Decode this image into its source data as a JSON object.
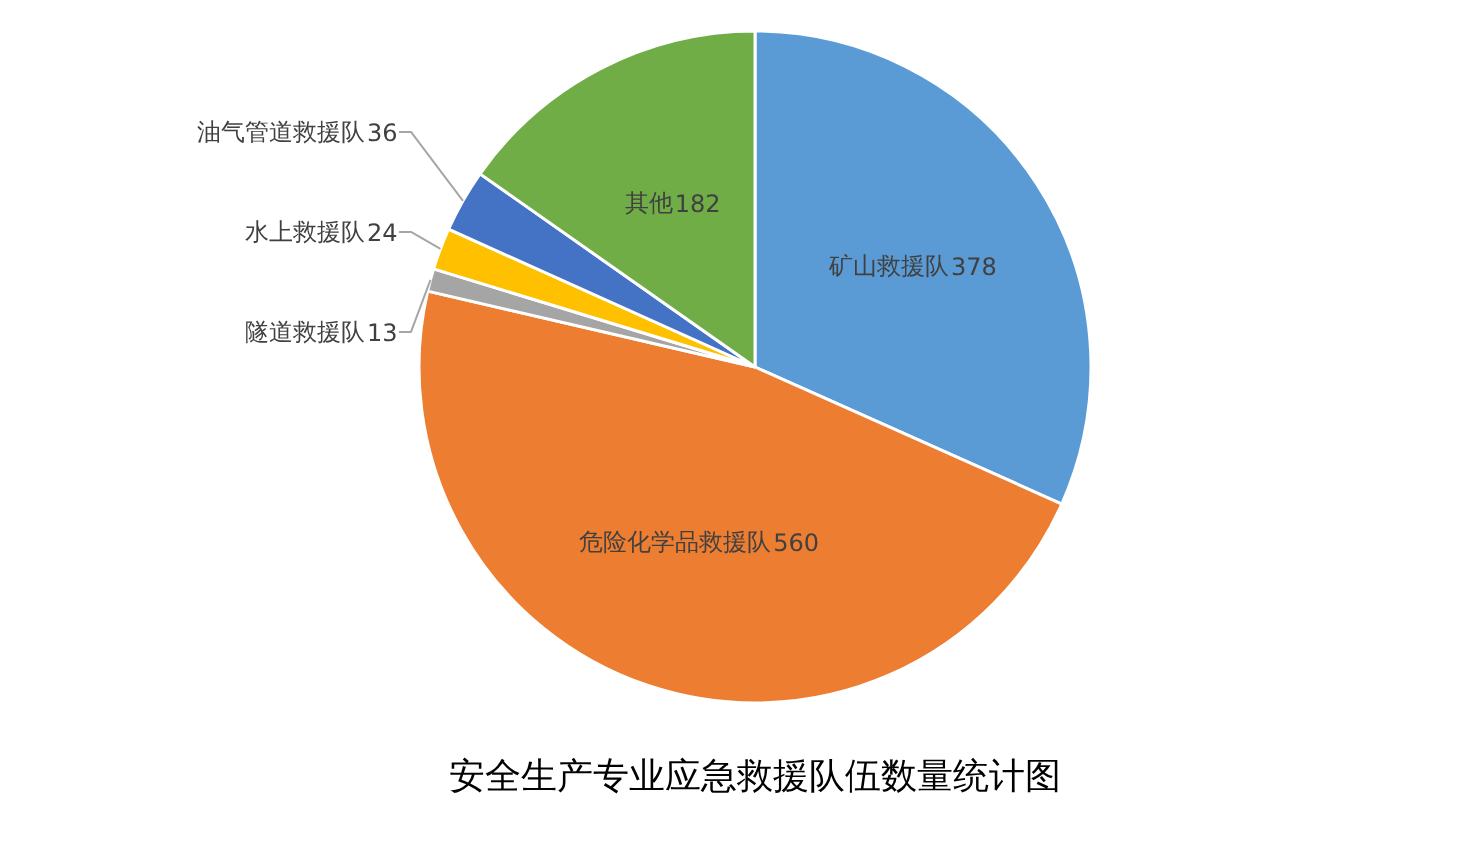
{
  "chart_data": {
    "type": "pie",
    "title": "安全生产专业应急救援队伍数量统计图",
    "categories": [
      "矿山救援队",
      "危险化学品救援队",
      "隧道救援队",
      "水上救援队",
      "油气管道救援队",
      "其他"
    ],
    "values": [
      378,
      560,
      13,
      24,
      36,
      182
    ],
    "colors": [
      "#5b9bd5",
      "#ed7d31",
      "#a5a5a5",
      "#ffc000",
      "#4472c4",
      "#70ad47"
    ],
    "data_labels": true
  }
}
